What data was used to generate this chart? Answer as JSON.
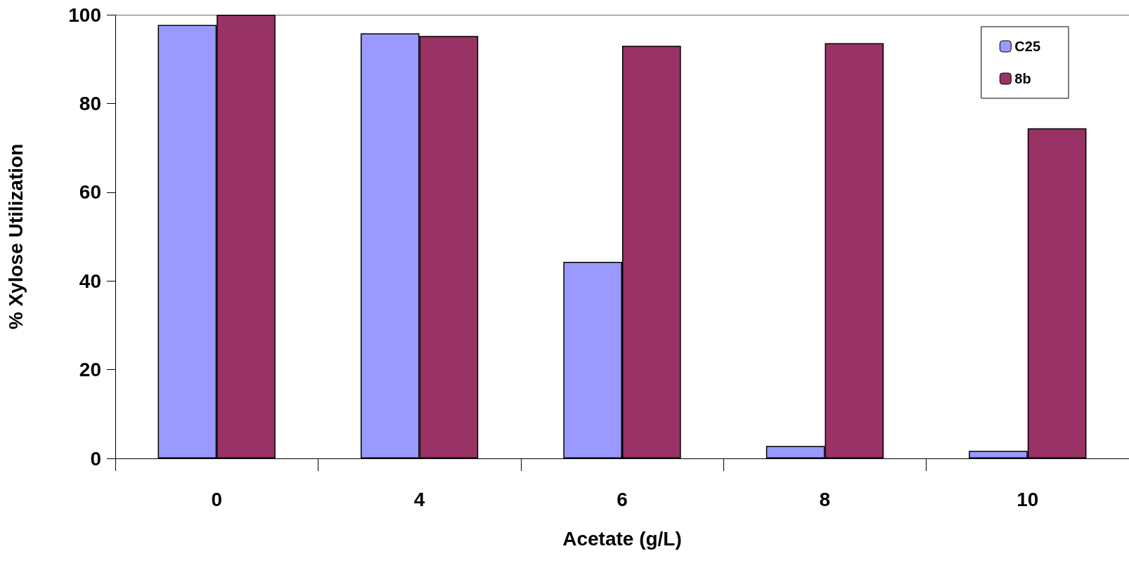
{
  "chart_data": {
    "type": "bar",
    "xlabel": "Acetate (g/L)",
    "ylabel": "% Xylose Utilization",
    "categories": [
      "0",
      "4",
      "6",
      "8",
      "10"
    ],
    "series": [
      {
        "name": "C25",
        "color": "#9999ff",
        "values": [
          97.7,
          95.8,
          44.3,
          2.8,
          1.7
        ]
      },
      {
        "name": "8b",
        "color": "#993366",
        "values": [
          100,
          95.2,
          93.0,
          93.6,
          74.4
        ]
      }
    ],
    "ylim": [
      0,
      100
    ],
    "yticks": [
      0,
      20,
      40,
      60,
      80,
      100
    ],
    "grid": false,
    "legend": "top right"
  }
}
